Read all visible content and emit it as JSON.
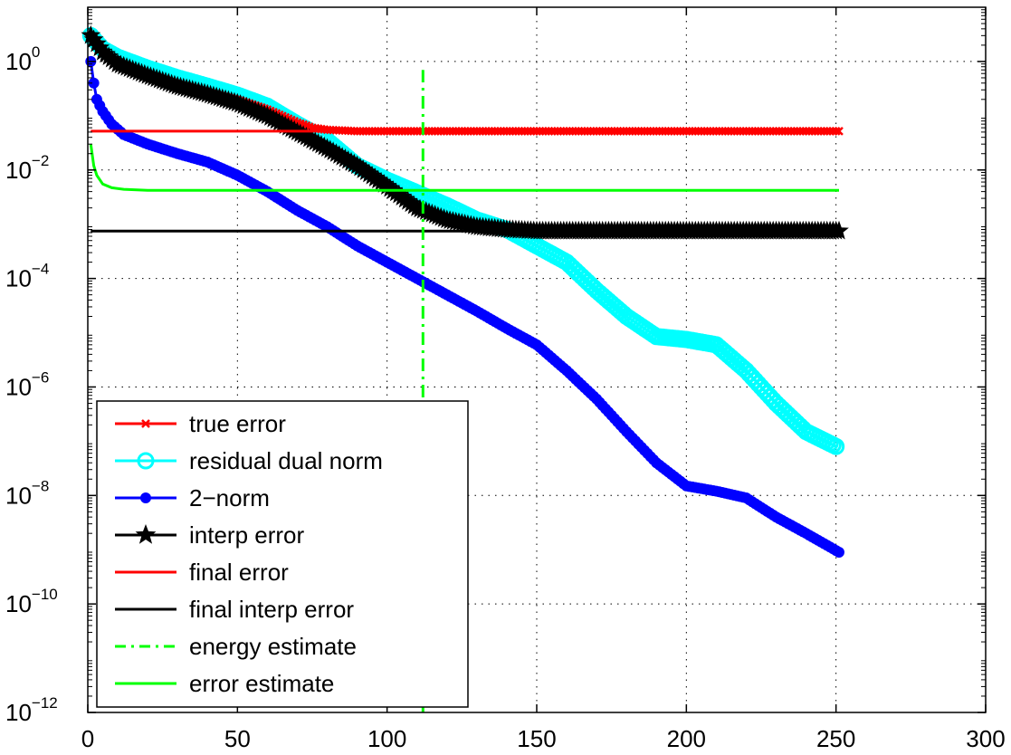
{
  "chart_data": {
    "type": "line",
    "title": "",
    "xlabel": "",
    "ylabel": "",
    "xlim": [
      0,
      300
    ],
    "ylim": [
      1e-12,
      10
    ],
    "yscale": "log",
    "grid": true,
    "legend_position": "bottom-left",
    "x_ticks": [
      0,
      50,
      100,
      150,
      200,
      250,
      300
    ],
    "y_ticks": [
      {
        "value": 1e-12,
        "base": "10",
        "exp": "−12"
      },
      {
        "value": 1e-10,
        "base": "10",
        "exp": "−10"
      },
      {
        "value": 1e-08,
        "base": "10",
        "exp": "−8"
      },
      {
        "value": 1e-06,
        "base": "10",
        "exp": "−6"
      },
      {
        "value": 0.0001,
        "base": "10",
        "exp": "−4"
      },
      {
        "value": 0.01,
        "base": "10",
        "exp": "−2"
      },
      {
        "value": 1,
        "base": "10",
        "exp": "0"
      }
    ],
    "series": [
      {
        "name": "residual dual norm",
        "color": "#00ffff",
        "marker": "circle",
        "line": "solid",
        "x": [
          1,
          5,
          10,
          20,
          30,
          40,
          50,
          60,
          70,
          80,
          90,
          100,
          110,
          120,
          130,
          140,
          150,
          160,
          170,
          180,
          190,
          200,
          210,
          220,
          230,
          240,
          250
        ],
        "y": [
          3.0,
          1.7,
          1.2,
          0.75,
          0.5,
          0.35,
          0.24,
          0.15,
          0.07,
          0.035,
          0.012,
          0.0065,
          0.0038,
          0.0022,
          0.0012,
          0.0008,
          0.0004,
          0.0002,
          6e-05,
          2e-05,
          8.5e-06,
          7.5e-06,
          6e-06,
          2e-06,
          5e-07,
          1.5e-07,
          8e-08
        ]
      },
      {
        "name": "true error",
        "color": "#ff0000",
        "marker": "x",
        "line": "solid",
        "x": [
          1,
          5,
          10,
          20,
          30,
          40,
          50,
          60,
          70,
          75,
          80,
          90,
          100,
          120,
          150,
          200,
          251
        ],
        "y": [
          3.0,
          1.6,
          1.0,
          0.6,
          0.4,
          0.28,
          0.2,
          0.13,
          0.075,
          0.06,
          0.055,
          0.052,
          0.052,
          0.052,
          0.052,
          0.052,
          0.052
        ]
      },
      {
        "name": "interp error",
        "color": "#000000",
        "marker": "star",
        "line": "solid",
        "x": [
          1,
          5,
          10,
          20,
          30,
          40,
          50,
          60,
          70,
          80,
          90,
          100,
          110,
          120,
          130,
          140,
          150,
          200,
          251
        ],
        "y": [
          3.0,
          1.5,
          0.9,
          0.55,
          0.35,
          0.25,
          0.17,
          0.1,
          0.05,
          0.025,
          0.012,
          0.005,
          0.002,
          0.0012,
          0.0009,
          0.0008,
          0.00075,
          0.00075,
          0.00075
        ]
      },
      {
        "name": "2−norm",
        "color": "#0000ff",
        "marker": "dot",
        "line": "solid",
        "x": [
          1,
          2,
          3,
          5,
          8,
          12,
          20,
          30,
          40,
          50,
          60,
          70,
          80,
          90,
          100,
          110,
          120,
          130,
          140,
          150,
          160,
          170,
          180,
          190,
          200,
          210,
          220,
          230,
          240,
          251
        ],
        "y": [
          1.0,
          0.4,
          0.2,
          0.12,
          0.07,
          0.045,
          0.03,
          0.02,
          0.014,
          0.008,
          0.004,
          0.0018,
          0.0009,
          0.0004,
          0.0002,
          0.0001,
          5e-05,
          2.5e-05,
          1.2e-05,
          6e-06,
          2e-06,
          6e-07,
          1.5e-07,
          4e-08,
          1.5e-08,
          1.2e-08,
          9e-09,
          4e-09,
          2e-09,
          9e-10
        ]
      },
      {
        "name": "final error",
        "color": "#ff0000",
        "marker": "none",
        "line": "solid",
        "x": [
          1,
          251
        ],
        "y": [
          0.052,
          0.052
        ]
      },
      {
        "name": "final interp error",
        "color": "#000000",
        "marker": "none",
        "line": "solid",
        "x": [
          1,
          251
        ],
        "y": [
          0.00075,
          0.00075
        ]
      },
      {
        "name": "energy estimate",
        "color": "#00ff00",
        "marker": "none",
        "line": "dashdot",
        "x": [
          112,
          112
        ],
        "y": [
          1e-12,
          0.7
        ]
      },
      {
        "name": "error estimate",
        "color": "#00ff00",
        "marker": "none",
        "line": "solid",
        "x": [
          1,
          2,
          3,
          5,
          8,
          12,
          20,
          40,
          80,
          150,
          251
        ],
        "y": [
          0.03,
          0.012,
          0.008,
          0.0055,
          0.0047,
          0.0044,
          0.0042,
          0.0042,
          0.0042,
          0.0042,
          0.0042
        ]
      }
    ],
    "legend_order": [
      "true error",
      "residual dual norm",
      "2−norm",
      "interp error",
      "final error",
      "final interp error",
      "energy estimate",
      "error estimate"
    ]
  }
}
